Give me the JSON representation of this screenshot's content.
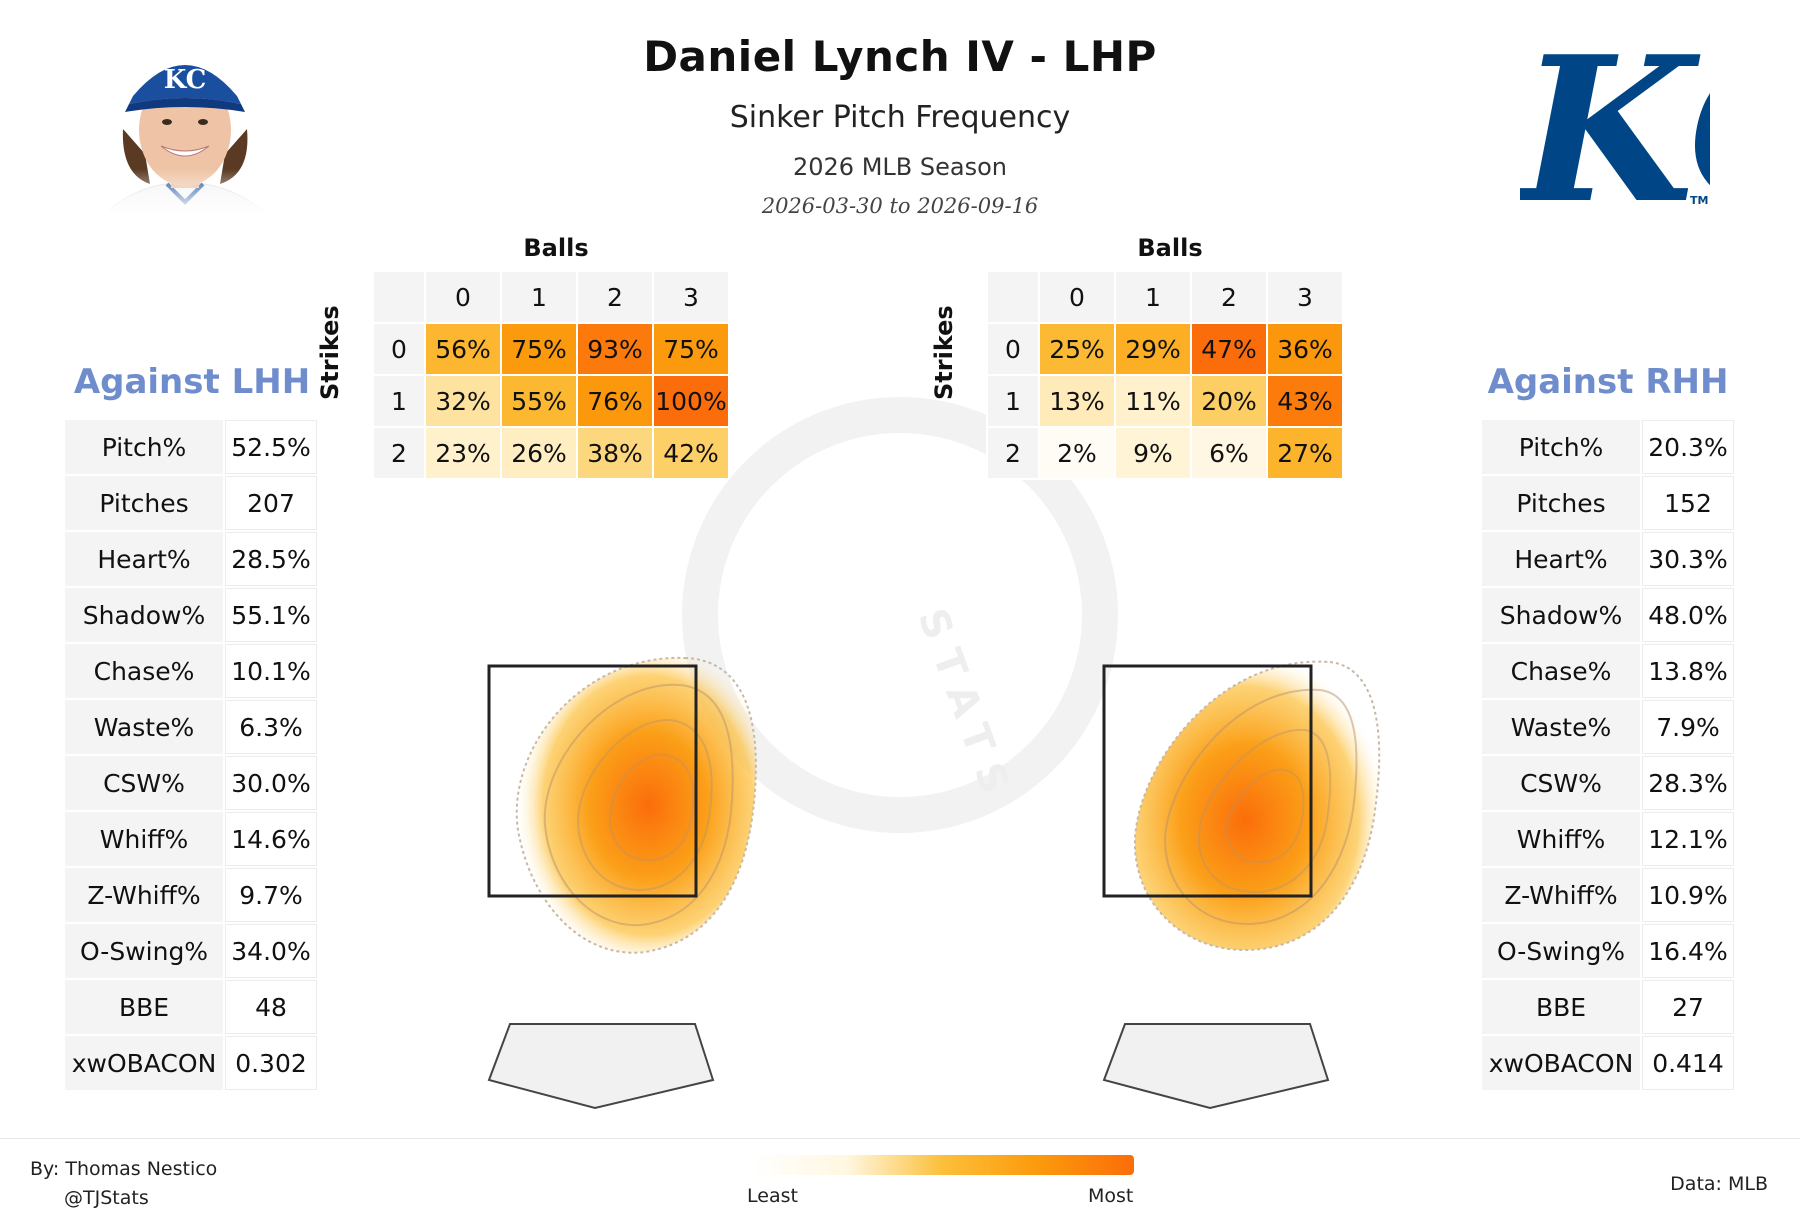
{
  "header": {
    "title": "Daniel Lynch IV - LHP",
    "subtitle": "Sinker Pitch Frequency",
    "season": "2026 MLB Season",
    "dates": "2026-03-30 to 2026-09-16"
  },
  "logo": {
    "team_mark": "KC",
    "tm": "TM",
    "color": "#004687"
  },
  "headshot": {
    "cap_letters": "KC",
    "cap_color": "#1a4fa0"
  },
  "left": {
    "title": "Against LHH",
    "stats": [
      {
        "label": "Pitch%",
        "value": "52.5%"
      },
      {
        "label": "Pitches",
        "value": "207"
      },
      {
        "label": "Heart%",
        "value": "28.5%"
      },
      {
        "label": "Shadow%",
        "value": "55.1%"
      },
      {
        "label": "Chase%",
        "value": "10.1%"
      },
      {
        "label": "Waste%",
        "value": "6.3%"
      },
      {
        "label": "CSW%",
        "value": "30.0%"
      },
      {
        "label": "Whiff%",
        "value": "14.6%"
      },
      {
        "label": "Z-Whiff%",
        "value": "9.7%"
      },
      {
        "label": "O-Swing%",
        "value": "34.0%"
      },
      {
        "label": "BBE",
        "value": "48"
      },
      {
        "label": "xwOBACON",
        "value": "0.302"
      }
    ]
  },
  "right": {
    "title": "Against RHH",
    "stats": [
      {
        "label": "Pitch%",
        "value": "20.3%"
      },
      {
        "label": "Pitches",
        "value": "152"
      },
      {
        "label": "Heart%",
        "value": "30.3%"
      },
      {
        "label": "Shadow%",
        "value": "48.0%"
      },
      {
        "label": "Chase%",
        "value": "13.8%"
      },
      {
        "label": "Waste%",
        "value": "7.9%"
      },
      {
        "label": "CSW%",
        "value": "28.3%"
      },
      {
        "label": "Whiff%",
        "value": "12.1%"
      },
      {
        "label": "Z-Whiff%",
        "value": "10.9%"
      },
      {
        "label": "O-Swing%",
        "value": "16.4%"
      },
      {
        "label": "BBE",
        "value": "27"
      },
      {
        "label": "xwOBACON",
        "value": "0.414"
      }
    ]
  },
  "chart_data": [
    {
      "type": "heatmap",
      "name": "count-grid-lhh",
      "xlabel": "Balls",
      "ylabel": "Strikes",
      "x": [
        "0",
        "1",
        "2",
        "3"
      ],
      "y": [
        "0",
        "1",
        "2"
      ],
      "values": [
        [
          56,
          75,
          93,
          75
        ],
        [
          32,
          55,
          76,
          100
        ],
        [
          23,
          26,
          38,
          42
        ]
      ]
    },
    {
      "type": "heatmap",
      "name": "count-grid-rhh",
      "xlabel": "Balls",
      "ylabel": "Strikes",
      "x": [
        "0",
        "1",
        "2",
        "3"
      ],
      "y": [
        "0",
        "1",
        "2"
      ],
      "values": [
        [
          25,
          29,
          47,
          36
        ],
        [
          13,
          11,
          20,
          43
        ],
        [
          2,
          9,
          6,
          27
        ]
      ]
    }
  ],
  "legend": {
    "least": "Least",
    "most": "Most",
    "colors": [
      "#fff7e0",
      "#fcbf3a",
      "#fb9a0c",
      "#fb6d0a"
    ]
  },
  "watermark": "STATS",
  "footer": {
    "author": "By: Thomas Nestico",
    "handle": "@TJStats",
    "source": "Data: MLB"
  }
}
